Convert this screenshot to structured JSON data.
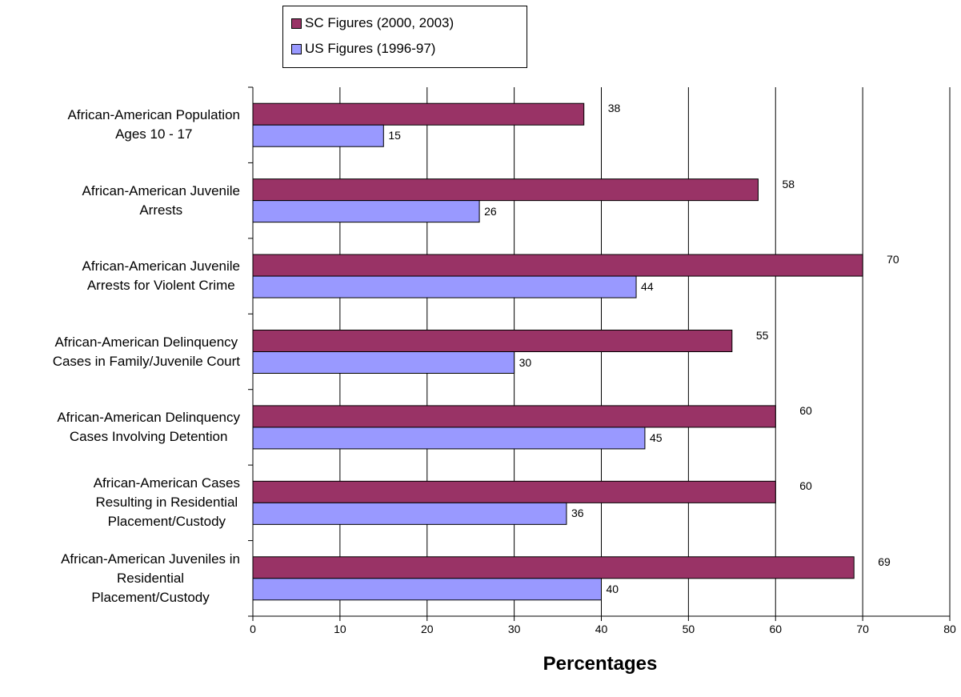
{
  "chart_data": {
    "type": "bar",
    "orientation": "horizontal",
    "categories": [
      [
        "African-American Population",
        "Ages 10 - 17"
      ],
      [
        "African-American Juvenile",
        "Arrests"
      ],
      [
        "African-American Juvenile",
        "Arrests for Violent Crime"
      ],
      [
        "African-American Delinquency",
        "Cases in Family/Juvenile Court"
      ],
      [
        "African-American Delinquency",
        "Cases Involving Detention"
      ],
      [
        "African-American Cases",
        "Resulting in Residential",
        "Placement/Custody"
      ],
      [
        "African-American Juveniles in",
        "Residential",
        "Placement/Custody"
      ]
    ],
    "series": [
      {
        "name": "SC Figures (2000, 2003)",
        "color": "#993366",
        "values": [
          38,
          58,
          70,
          55,
          60,
          60,
          69
        ]
      },
      {
        "name": "US Figures (1996-97)",
        "color": "#9999ff",
        "values": [
          15,
          26,
          44,
          30,
          45,
          36,
          40
        ]
      }
    ],
    "xlabel": "Percentages",
    "xlim": [
      0,
      80
    ],
    "xticks": [
      "0",
      "10",
      "20",
      "30",
      "40",
      "50",
      "60",
      "70",
      "80"
    ],
    "grid": "vertical",
    "legend": "top-center"
  }
}
